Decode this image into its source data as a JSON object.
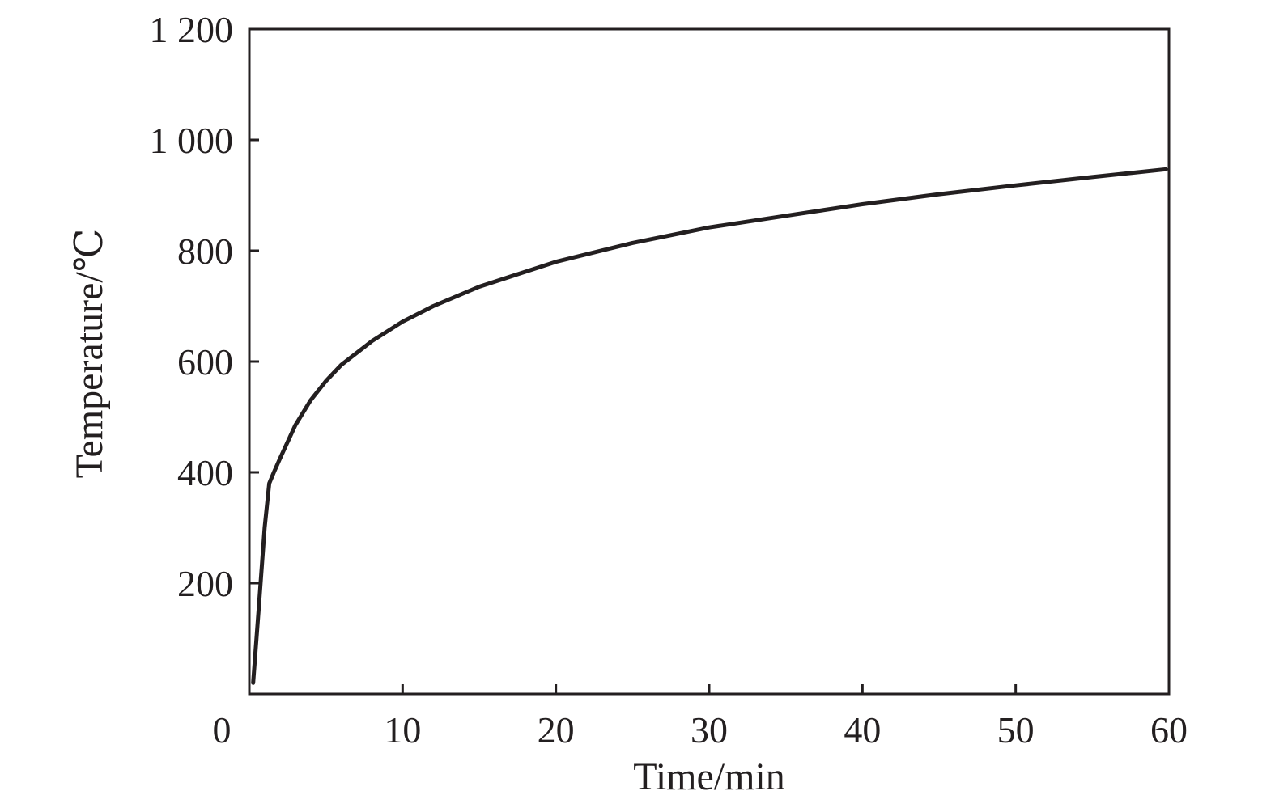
{
  "chart_data": {
    "type": "line",
    "title": "",
    "xlabel": "Time/min",
    "ylabel": "Temperature/℃",
    "xlim": [
      0,
      60
    ],
    "ylim": [
      0,
      1200
    ],
    "xticks": [
      {
        "value": 0,
        "label": "0"
      },
      {
        "value": 10,
        "label": "10"
      },
      {
        "value": 20,
        "label": "20"
      },
      {
        "value": 30,
        "label": "30"
      },
      {
        "value": 40,
        "label": "40"
      },
      {
        "value": 50,
        "label": "50"
      },
      {
        "value": 60,
        "label": "60"
      }
    ],
    "yticks": [
      {
        "value": 200,
        "label": "200"
      },
      {
        "value": 400,
        "label": "400"
      },
      {
        "value": 600,
        "label": "600"
      },
      {
        "value": 800,
        "label": "800"
      },
      {
        "value": 1000,
        "label": "1 000"
      },
      {
        "value": 1200,
        "label": "1 200"
      }
    ],
    "grid": false,
    "line_color": "#231f20",
    "series": [
      {
        "x": [
          0.25,
          0.6,
          1.0,
          1.3,
          1.6,
          2,
          3,
          4,
          5,
          6,
          8,
          10,
          12,
          15,
          20,
          25,
          30,
          35,
          40,
          45,
          50,
          55,
          59.8
        ],
        "y": [
          20,
          150,
          300,
          380,
          400,
          425,
          485,
          530,
          565,
          594,
          637,
          672,
          700,
          735,
          780,
          814,
          842,
          863,
          884,
          902,
          918,
          933,
          947
        ]
      }
    ]
  }
}
